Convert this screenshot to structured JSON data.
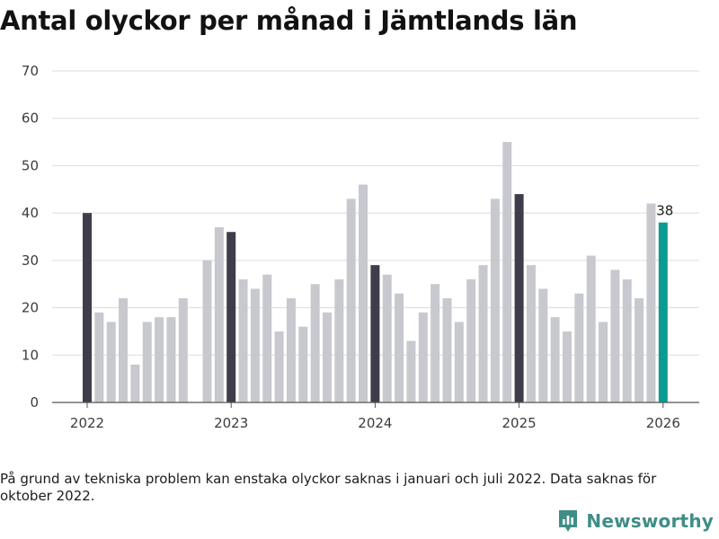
{
  "header": {
    "title": "Antal olyckor per månad i Jämtlands län"
  },
  "footer": {
    "note": "På grund av tekniska problem kan enstaka olyckor saknas i januari och juli 2022. Data saknas för oktober 2022.",
    "brand": "Newsworthy"
  },
  "colors": {
    "regular_bar": "#c8c8cf",
    "january_bar": "#3e3d4a",
    "latest_bar": "#0c9b91",
    "grid": "#dddddd",
    "axis": "#555555",
    "brand": "#3f8e86"
  },
  "chart_data": {
    "type": "bar",
    "title": "Antal olyckor per månad i Jämtlands län",
    "xlabel": "",
    "ylabel": "",
    "ylim": [
      0,
      70
    ],
    "yticks": [
      0,
      10,
      20,
      30,
      40,
      50,
      60,
      70
    ],
    "xticks": [
      {
        "label": "2022",
        "index": 0
      },
      {
        "label": "2023",
        "index": 12
      },
      {
        "label": "2024",
        "index": 24
      },
      {
        "label": "2025",
        "index": 36
      },
      {
        "label": "2026",
        "index": 48
      }
    ],
    "series": [
      {
        "name": "Olyckor",
        "values": [
          40,
          19,
          17,
          22,
          8,
          17,
          18,
          18,
          22,
          null,
          30,
          37,
          36,
          26,
          24,
          27,
          15,
          22,
          16,
          25,
          19,
          26,
          43,
          46,
          29,
          27,
          23,
          13,
          19,
          25,
          22,
          17,
          26,
          29,
          43,
          55,
          44,
          29,
          24,
          18,
          15,
          23,
          31,
          17,
          28,
          26,
          22,
          42,
          38
        ]
      }
    ],
    "highlight_index": 48,
    "annotations": [
      {
        "index": 48,
        "text": "38"
      }
    ],
    "grid": true,
    "legend": "none"
  }
}
